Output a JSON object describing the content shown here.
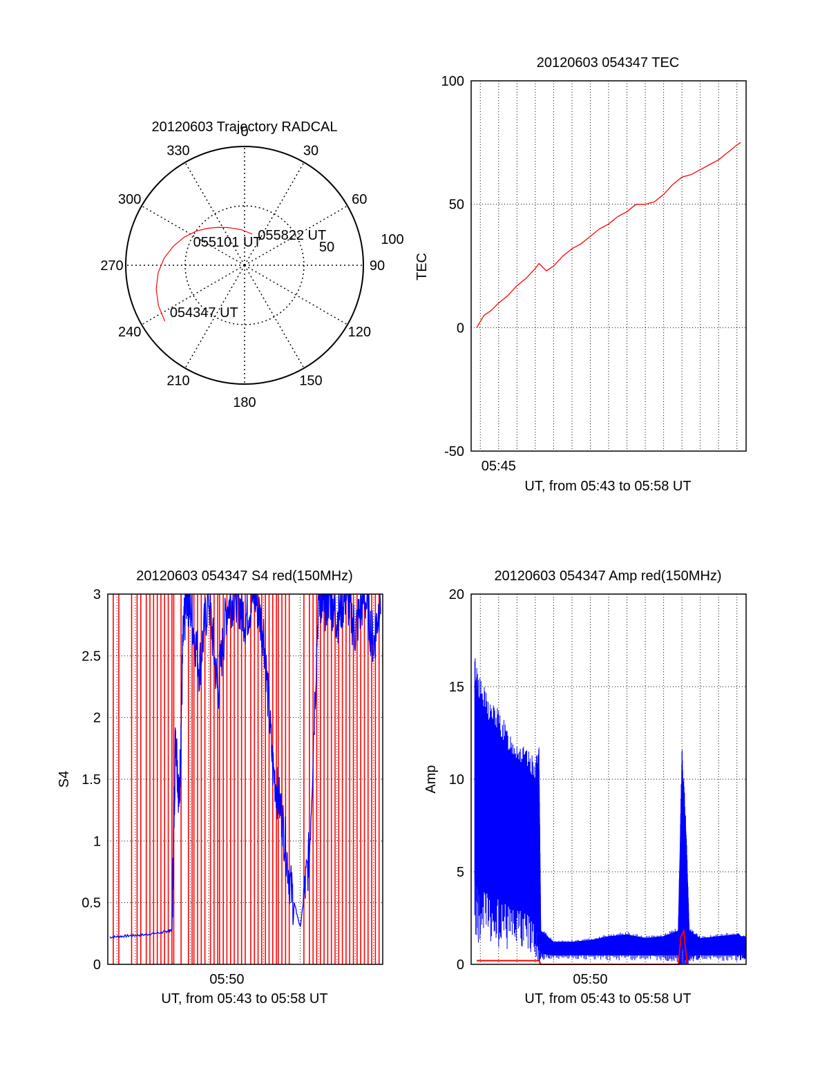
{
  "colors": {
    "red": "#ff0000",
    "blue": "#0000ff",
    "axis": "#000000",
    "background": "#ffffff"
  },
  "chart_data": [
    {
      "type": "polar",
      "title": "20120603 Trajectory RADCAL",
      "angle_labels": [
        "0",
        "30",
        "60",
        "90",
        "120",
        "150",
        "180",
        "210",
        "240",
        "270",
        "300",
        "330"
      ],
      "radial_labels": [
        "50",
        "100"
      ],
      "radial_range": [
        0,
        100
      ],
      "direction": "clockwise from north",
      "grid": true,
      "track_points": [
        {
          "az": 235,
          "el": 18
        },
        {
          "az": 245,
          "el": 20
        },
        {
          "az": 255,
          "el": 23
        },
        {
          "az": 265,
          "el": 27
        },
        {
          "az": 275,
          "el": 32
        },
        {
          "az": 285,
          "el": 38
        },
        {
          "az": 295,
          "el": 44
        },
        {
          "az": 305,
          "el": 50
        },
        {
          "az": 315,
          "el": 56
        },
        {
          "az": 325,
          "el": 61
        },
        {
          "az": 335,
          "el": 65
        },
        {
          "az": 345,
          "el": 68
        },
        {
          "az": 355,
          "el": 70
        },
        {
          "az": 5,
          "el": 72
        },
        {
          "az": 14,
          "el": 73
        }
      ],
      "annotations": [
        {
          "text": "054347 UT",
          "az": 240,
          "el": 22
        },
        {
          "text": "055101 UT",
          "az": 293,
          "el": 48
        },
        {
          "text": "055822 UT",
          "az": 14,
          "el": 73
        }
      ]
    },
    {
      "type": "line",
      "title": "20120603 054347 TEC",
      "ylabel": "TEC",
      "xlabel": "UT, from 05:43 to 05:58 UT",
      "ylim": [
        -50,
        100
      ],
      "yticks": [
        "-50",
        "0",
        "50",
        "100"
      ],
      "xlim_min": [
        43.5,
        58.5
      ],
      "xtick_label": "05:45",
      "grid": true,
      "series": [
        {
          "color": "#ff0000",
          "x": [
            43.8,
            44.2,
            44.6,
            45.0,
            45.5,
            46.0,
            46.5,
            47.0,
            47.2,
            47.6,
            48.0,
            48.5,
            49.0,
            49.5,
            50.0,
            50.5,
            51.0,
            51.5,
            52.0,
            52.5,
            53.0,
            53.5,
            54.0,
            54.5,
            55.0,
            55.5,
            56.0,
            56.5,
            57.0,
            57.5,
            58.0,
            58.2
          ],
          "y": [
            0,
            5,
            7,
            10,
            13,
            17,
            20,
            24,
            26,
            23,
            25,
            29,
            32,
            34,
            37,
            40,
            42,
            45,
            47,
            50,
            50,
            51,
            54,
            58,
            61,
            62,
            64,
            66,
            68,
            71,
            74,
            75
          ]
        }
      ]
    },
    {
      "type": "line",
      "title": "20120603 054347 S4 red(150MHz)",
      "ylabel": "S4",
      "xlabel": "UT, from 05:43 to 05:58 UT",
      "ylim": [
        0,
        3
      ],
      "yticks": [
        "0",
        "0.5",
        "1",
        "1.5",
        "2",
        "2.5",
        "3"
      ],
      "xlim_min": [
        43.5,
        58.5
      ],
      "xtick_label": "05:50",
      "grid": true,
      "series": [
        {
          "color": "#0000ff",
          "x": [
            43.6,
            44.5,
            45.5,
            46.5,
            47.0,
            47.2,
            47.4,
            47.6,
            47.8,
            48.0,
            48.5,
            49.0,
            49.5,
            50.0,
            50.5,
            51.0,
            51.5,
            52.0,
            52.5,
            53.0,
            53.5,
            54.0,
            54.5,
            55.0,
            55.3,
            55.6,
            56.0,
            56.5,
            57.0,
            57.5,
            58.0,
            58.4
          ],
          "y": [
            0.22,
            0.23,
            0.24,
            0.26,
            0.28,
            1.9,
            1.3,
            2.6,
            3.0,
            2.9,
            2.4,
            3.0,
            2.2,
            2.9,
            3.0,
            2.8,
            3.0,
            2.7,
            1.6,
            1.2,
            0.6,
            0.3,
            0.9,
            3.0,
            2.9,
            3.0,
            2.8,
            3.0,
            2.7,
            3.0,
            2.6,
            3.0
          ]
        },
        {
          "color": "#ff0000",
          "spikes_x": [
            43.8,
            44.1,
            44.8,
            45.1,
            45.3,
            45.6,
            45.8,
            46.0,
            46.2,
            46.4,
            46.6,
            46.8,
            47.0,
            47.1,
            47.5,
            47.9,
            48.1,
            48.2,
            48.4,
            48.6,
            48.8,
            49.1,
            49.3,
            49.5,
            49.6,
            49.8,
            50.0,
            50.2,
            50.4,
            50.6,
            50.8,
            51.0,
            51.3,
            51.5,
            51.7,
            51.9,
            52.1,
            52.3,
            52.5,
            52.7,
            52.8,
            53.0,
            53.2,
            53.4,
            54.2,
            54.5,
            54.7,
            54.9,
            55.1,
            55.3,
            55.5,
            55.7,
            55.9,
            56.1,
            56.3,
            56.5,
            56.7,
            56.9,
            57.1,
            57.3,
            57.5,
            57.7,
            57.9,
            58.1,
            58.3
          ]
        }
      ]
    },
    {
      "type": "line",
      "title": "20120603 054347 Amp red(150MHz)",
      "ylabel": "Amp",
      "xlabel": "UT, from 05:43 to 05:58 UT",
      "ylim": [
        0,
        20
      ],
      "yticks": [
        "0",
        "5",
        "10",
        "15",
        "20"
      ],
      "xlim_min": [
        43.5,
        58.5
      ],
      "xtick_label": "05:50",
      "grid": true,
      "series": [
        {
          "color": "#0000ff",
          "band_x": [
            43.7,
            44.0,
            44.5,
            45.0,
            45.5,
            46.0,
            46.5,
            47.0,
            47.2,
            47.3,
            48.0,
            49.0,
            50.0,
            51.0,
            52.0,
            53.0,
            54.0,
            54.8,
            55.0,
            55.2,
            55.4,
            56.0,
            57.0,
            58.0,
            58.5
          ],
          "band_low": [
            4.5,
            4.0,
            3.8,
            3.5,
            3.2,
            3.0,
            2.8,
            2.6,
            2.2,
            0.6,
            0.5,
            0.5,
            0.5,
            0.5,
            0.5,
            0.5,
            0.5,
            0.5,
            1.5,
            1.0,
            0.5,
            0.5,
            0.5,
            0.5,
            0.5
          ],
          "band_high": [
            15.2,
            14.0,
            13.0,
            12.5,
            11.5,
            11.0,
            10.5,
            10.0,
            10.5,
            1.8,
            1.2,
            1.2,
            1.3,
            1.5,
            1.6,
            1.4,
            1.5,
            1.8,
            10.5,
            7.5,
            1.8,
            1.4,
            1.5,
            1.6,
            1.4
          ]
        },
        {
          "color": "#ff0000",
          "x": [
            43.8,
            45.0,
            46.0,
            47.2,
            47.3,
            54.8,
            54.95,
            55.1,
            55.2,
            55.3
          ],
          "y": [
            0.2,
            0.2,
            0.2,
            0.2,
            0.0,
            0.0,
            1.5,
            1.8,
            0.8,
            0.0
          ]
        }
      ]
    }
  ]
}
